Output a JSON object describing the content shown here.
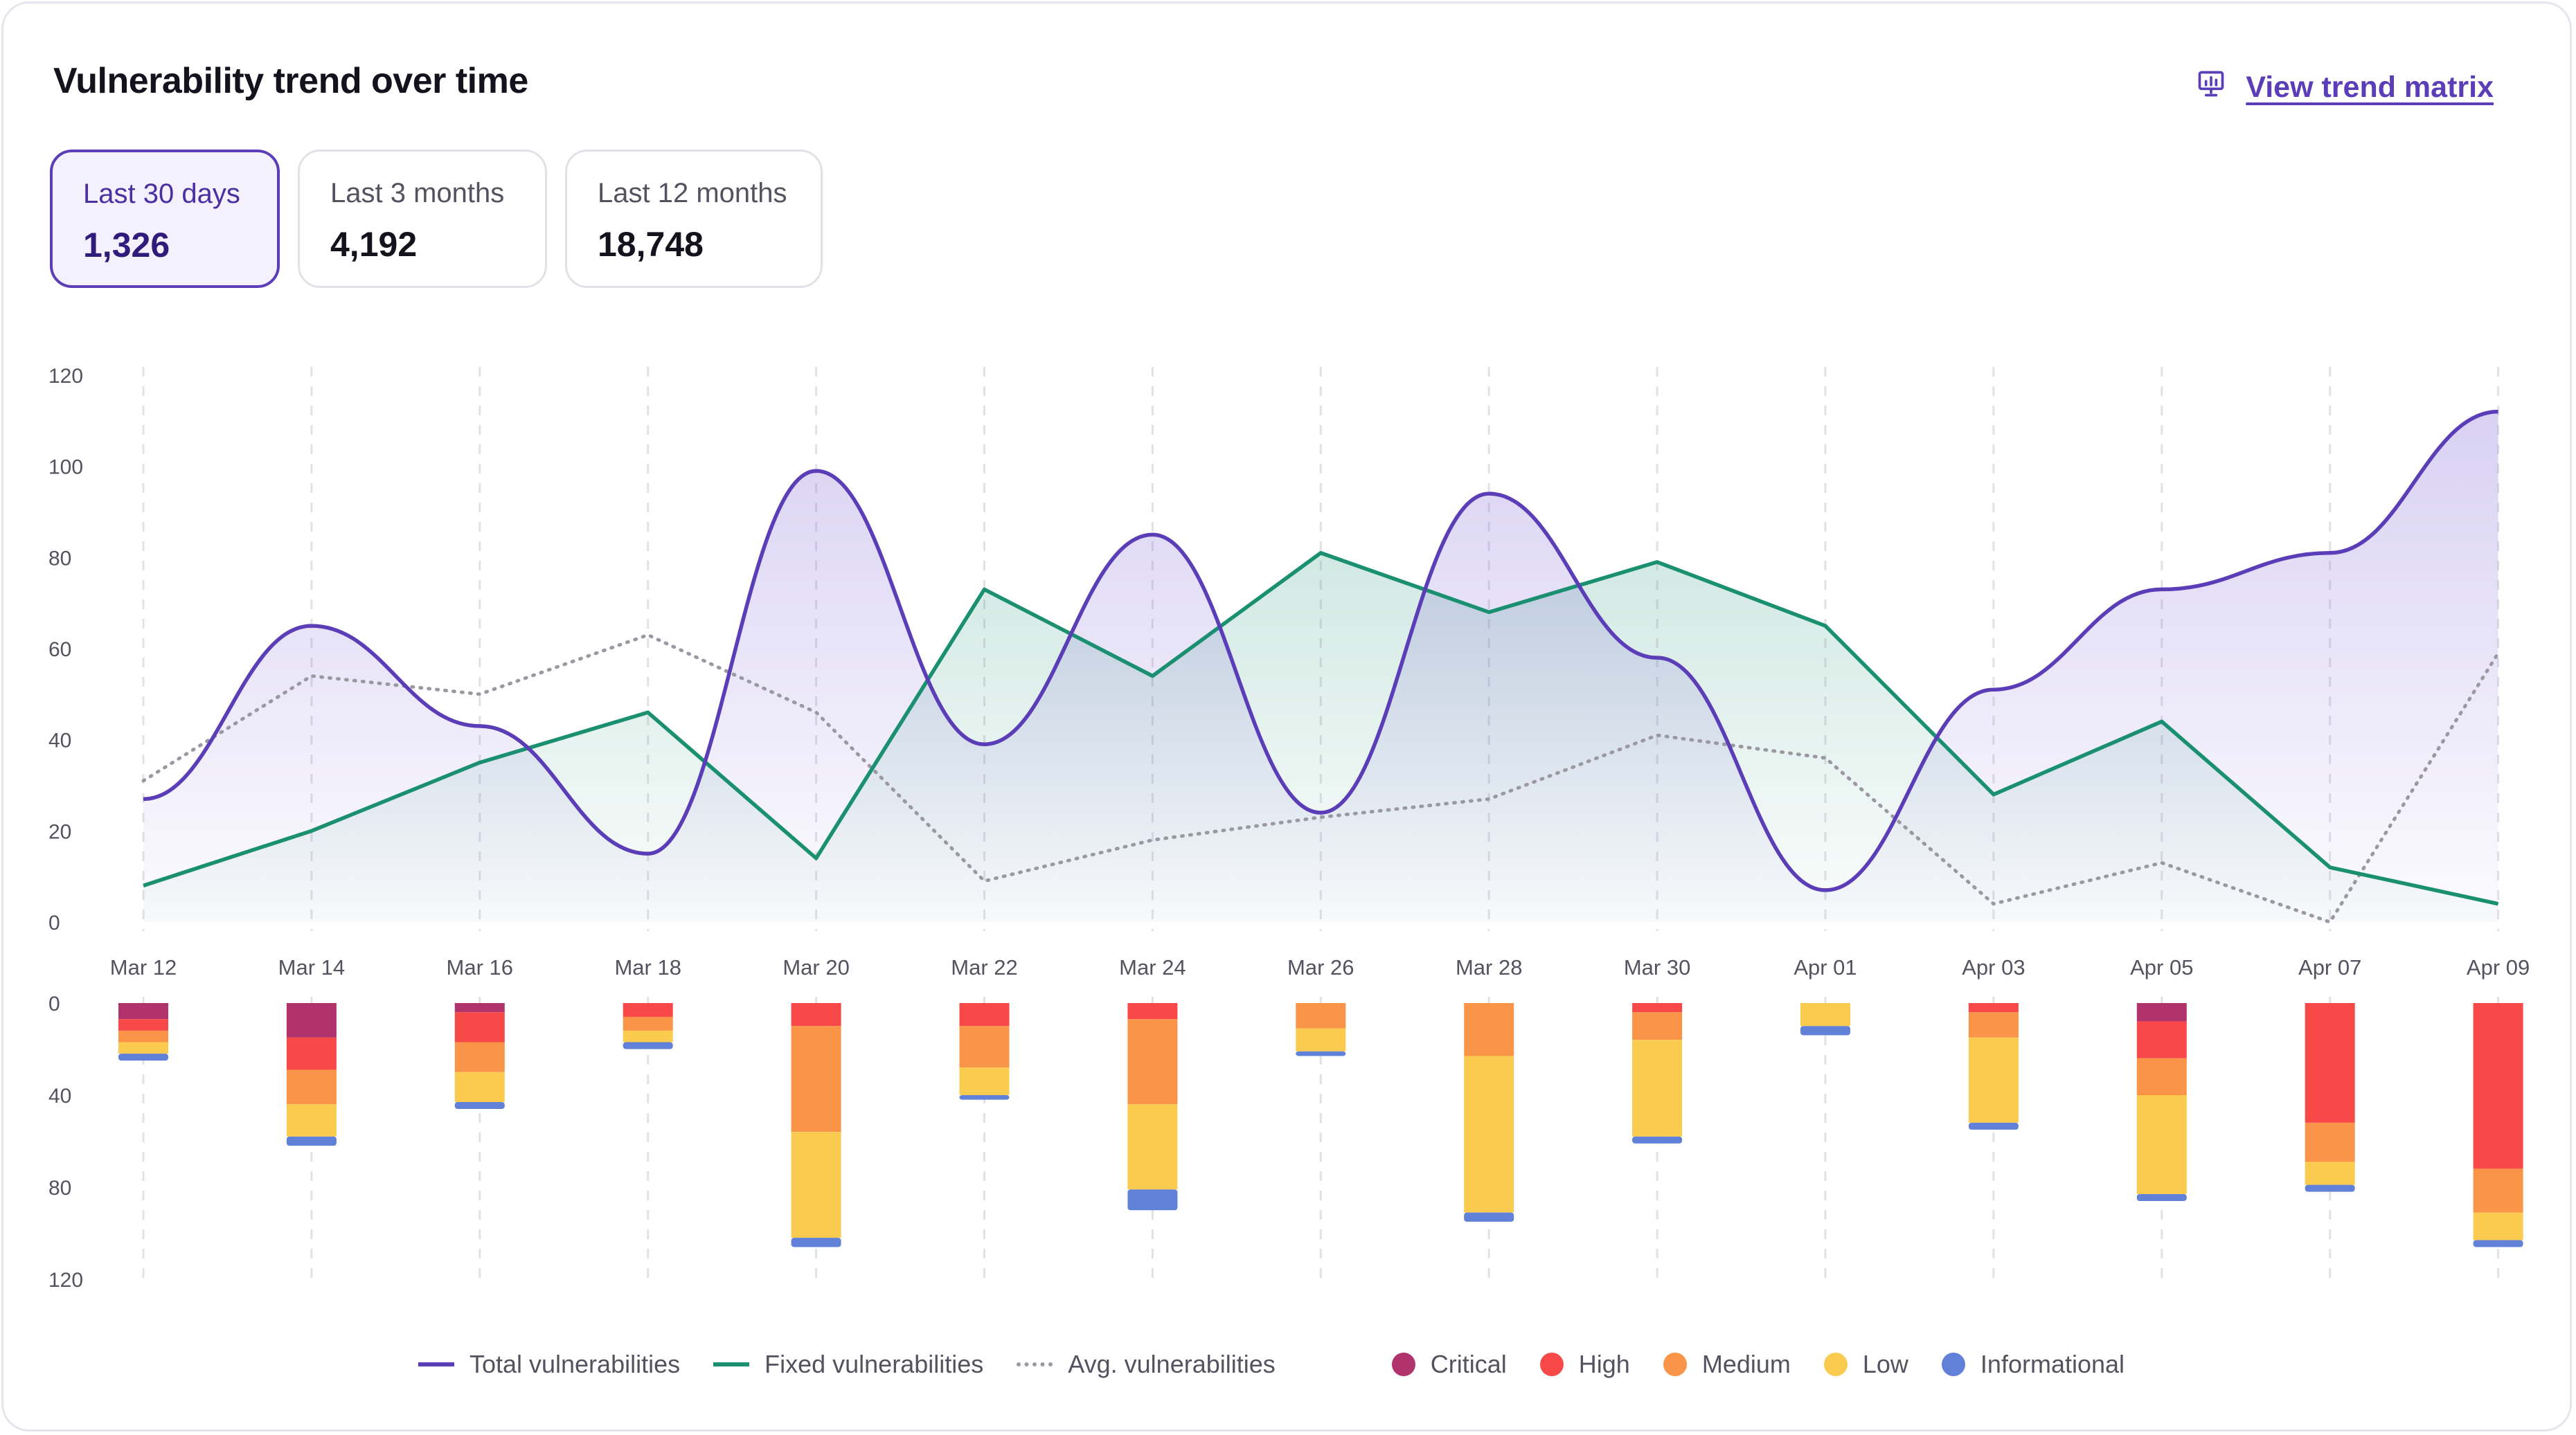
{
  "header": {
    "title": "Vulnerability trend over time",
    "view_link": "View trend matrix",
    "view_link_icon": "chart-board-icon"
  },
  "periods": [
    {
      "label": "Last 30 days",
      "value": "1,326",
      "active": true
    },
    {
      "label": "Last 3 months",
      "value": "4,192",
      "active": false
    },
    {
      "label": "Last 12 months",
      "value": "18,748",
      "active": false
    }
  ],
  "colors": {
    "total": "#5b3db8",
    "fixed": "#1a9070",
    "avg": "#9a98a0",
    "critical": "#b0336b",
    "high": "#f84848",
    "medium": "#fa9448",
    "low": "#fbcb50",
    "informational": "#6181d8"
  },
  "chart_data": [
    {
      "type": "line",
      "x": [
        "Mar 12",
        "Mar 14",
        "Mar 16",
        "Mar 18",
        "Mar 20",
        "Mar 22",
        "Mar 24",
        "Mar 26",
        "Mar 28",
        "Mar 30",
        "Apr 01",
        "Apr 03",
        "Apr 05",
        "Apr 07",
        "Apr 09"
      ],
      "ylim": [
        0,
        120
      ],
      "yticks": [
        0,
        20,
        40,
        60,
        80,
        100,
        120
      ],
      "grid": "vertical dashed",
      "series": [
        {
          "name": "Total vulnerabilities",
          "style": "solid",
          "fill": true,
          "values": [
            27,
            65,
            43,
            15,
            99,
            39,
            85,
            24,
            94,
            58,
            7,
            51,
            73,
            81,
            112
          ]
        },
        {
          "name": "Fixed vulnerabilities",
          "style": "solid",
          "fill": true,
          "values": [
            8,
            20,
            35,
            46,
            14,
            73,
            54,
            81,
            68,
            79,
            65,
            28,
            44,
            12,
            4
          ]
        },
        {
          "name": "Avg. vulnerabilities",
          "style": "dotted",
          "fill": false,
          "values": [
            31,
            54,
            50,
            63,
            46,
            9,
            18,
            23,
            27,
            41,
            36,
            4,
            13,
            0,
            59
          ]
        }
      ]
    },
    {
      "type": "bar",
      "stacked": true,
      "orientation": "downward",
      "categories": [
        "Mar 12",
        "Mar 14",
        "Mar 16",
        "Mar 18",
        "Mar 20",
        "Mar 22",
        "Mar 24",
        "Mar 26",
        "Mar 28",
        "Mar 30",
        "Apr 01",
        "Apr 03",
        "Apr 05",
        "Apr 07",
        "Apr 09"
      ],
      "ylim": [
        0,
        120
      ],
      "yticks": [
        0,
        40,
        80,
        120
      ],
      "series": [
        {
          "name": "Critical",
          "values": [
            7,
            15,
            4,
            0,
            0,
            0,
            0,
            0,
            0,
            0,
            0,
            0,
            8,
            0,
            0
          ]
        },
        {
          "name": "High",
          "values": [
            5,
            14,
            13,
            6,
            10,
            10,
            7,
            0,
            0,
            4,
            0,
            4,
            16,
            52,
            72
          ]
        },
        {
          "name": "Medium",
          "values": [
            5,
            15,
            13,
            6,
            46,
            18,
            37,
            11,
            23,
            12,
            0,
            11,
            16,
            17,
            19
          ]
        },
        {
          "name": "Low",
          "values": [
            5,
            14,
            13,
            5,
            46,
            12,
            37,
            10,
            68,
            42,
            10,
            37,
            43,
            10,
            12
          ]
        },
        {
          "name": "Informational",
          "values": [
            3,
            4,
            3,
            3,
            4,
            2,
            9,
            2,
            4,
            3,
            4,
            3,
            3,
            3,
            3
          ]
        }
      ],
      "legend": "bottom"
    }
  ]
}
